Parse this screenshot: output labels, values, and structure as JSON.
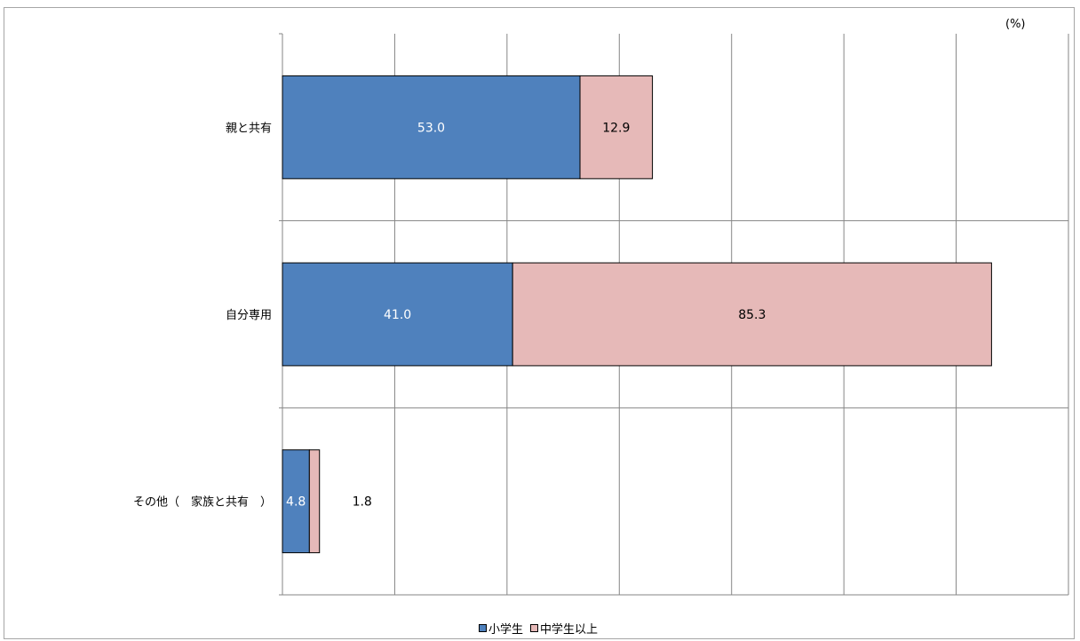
{
  "chart_data": {
    "type": "bar",
    "orientation": "horizontal",
    "stacked": true,
    "unit": "(%)",
    "categories": [
      "親と共有",
      "自分専用",
      "その他（　家族と共有　）"
    ],
    "series": [
      {
        "name": "小学生",
        "values": [
          53.0,
          41.0,
          4.8
        ],
        "labels": [
          "53.0",
          "41.0",
          "4.8"
        ],
        "color": "#4f81bd"
      },
      {
        "name": "中学生以上",
        "values": [
          12.9,
          85.3,
          1.8
        ],
        "labels": [
          "12.9",
          "85.3",
          "1.8"
        ],
        "color": "#e6b9b8"
      }
    ],
    "xlim": [
      0,
      140
    ],
    "grid": true,
    "legend_position": "bottom"
  }
}
